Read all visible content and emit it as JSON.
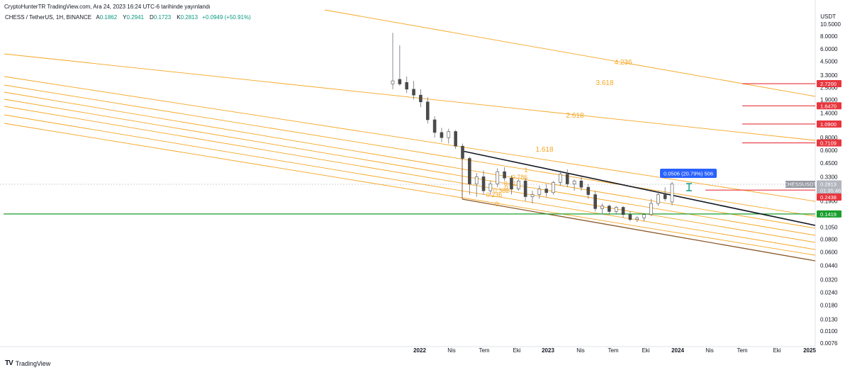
{
  "header": {
    "publisher": "CryptoHunterTR TradingView.com, Ara 24, 2023 16:24 UTC-6 tarihinde yayınlandı",
    "symbol_title": "CHESS / TetherUS, 1H, BINANCE",
    "ohlc": [
      {
        "label": "A",
        "value": "0.1862"
      },
      {
        "label": "Y",
        "value": "0.2941"
      },
      {
        "label": "D",
        "value": "0.1723"
      },
      {
        "label": "K",
        "value": "0.2813"
      }
    ],
    "change": "+0.0949 (+50.91%)",
    "currency": "USDT"
  },
  "footer": {
    "brand": "TradingView",
    "brand_mark": "TV"
  },
  "colors": {
    "fib": "#f5a623",
    "trend": "#131722",
    "channel_base": "#8b5a2b",
    "support": "#1b9e2d",
    "target": "#e8363f",
    "tooltip": "#2962ff",
    "measure": "#089981",
    "candle_up": "#ffffff",
    "candle_down": "#4a4a4a"
  },
  "chart_data": {
    "type": "candlestick",
    "y_scale": "log",
    "ylim": [
      0.0076,
      12.5
    ],
    "y_ticks": [
      "10.5000",
      "8.0000",
      "6.0000",
      "4.5000",
      "3.3000",
      "2.5000",
      "1.9000",
      "1.4000",
      "0.8000",
      "0.6000",
      "0.4500",
      "0.3300",
      "0.1900",
      "0.1050",
      "0.0800",
      "0.0600",
      "0.0440",
      "0.0320",
      "0.0240",
      "0.0180",
      "0.0130",
      "0.0100",
      "0.0076"
    ],
    "x_ticks": [
      {
        "label": "2022",
        "year": true
      },
      {
        "label": "Nis",
        "year": false
      },
      {
        "label": "Tem",
        "year": false
      },
      {
        "label": "Eki",
        "year": false
      },
      {
        "label": "2023",
        "year": true
      },
      {
        "label": "Nis",
        "year": false
      },
      {
        "label": "Tem",
        "year": false
      },
      {
        "label": "Eki",
        "year": false
      },
      {
        "label": "2024",
        "year": true
      },
      {
        "label": "Nis",
        "year": false
      },
      {
        "label": "Tem",
        "year": false
      },
      {
        "label": "Eki",
        "year": false
      },
      {
        "label": "2025",
        "year": true
      }
    ],
    "price_labels": [
      {
        "value": "2.7200",
        "kind": "target"
      },
      {
        "value": "1.6470",
        "kind": "target"
      },
      {
        "value": "1.0900",
        "kind": "target"
      },
      {
        "value": "0.7109",
        "kind": "target"
      },
      {
        "value": "0.2813",
        "kind": "last"
      },
      {
        "value": "01:35:46",
        "kind": "countdown"
      },
      {
        "value": "0.2438",
        "kind": "target"
      },
      {
        "value": "0.1419",
        "kind": "support"
      }
    ],
    "symbol_badge": "CHESSUSDT",
    "fib_levels": [
      "0.236",
      "0.382",
      "0.5",
      "0.618",
      "0.786",
      "1",
      "1.618",
      "2.618",
      "3.618",
      "4.236"
    ],
    "fib_zero_label": "0",
    "horizontal_levels": [
      {
        "value": 2.72,
        "kind": "target"
      },
      {
        "value": 1.647,
        "kind": "target"
      },
      {
        "value": 1.09,
        "kind": "target"
      },
      {
        "value": 0.7109,
        "kind": "target"
      },
      {
        "value": 0.2438,
        "kind": "target"
      },
      {
        "value": 0.1419,
        "kind": "support"
      }
    ],
    "measure_tooltip": "0.0506 (20.79%) 506",
    "candles": [
      {
        "o": 2.7,
        "h": 8.6,
        "l": 2.4,
        "c": 2.9
      },
      {
        "o": 3.0,
        "h": 6.5,
        "l": 2.6,
        "c": 2.7
      },
      {
        "o": 2.8,
        "h": 3.2,
        "l": 2.2,
        "c": 2.4
      },
      {
        "o": 2.4,
        "h": 2.9,
        "l": 1.9,
        "c": 2.1
      },
      {
        "o": 2.1,
        "h": 2.4,
        "l": 1.6,
        "c": 1.8
      },
      {
        "o": 1.8,
        "h": 2.0,
        "l": 1.1,
        "c": 1.2
      },
      {
        "o": 1.2,
        "h": 1.3,
        "l": 0.8,
        "c": 0.9
      },
      {
        "o": 0.9,
        "h": 1.0,
        "l": 0.72,
        "c": 0.8
      },
      {
        "o": 0.8,
        "h": 0.98,
        "l": 0.7,
        "c": 0.92
      },
      {
        "o": 0.92,
        "h": 0.95,
        "l": 0.62,
        "c": 0.66
      },
      {
        "o": 0.66,
        "h": 0.7,
        "l": 0.48,
        "c": 0.5
      },
      {
        "o": 0.5,
        "h": 0.52,
        "l": 0.22,
        "c": 0.28
      },
      {
        "o": 0.28,
        "h": 0.36,
        "l": 0.21,
        "c": 0.33
      },
      {
        "o": 0.33,
        "h": 0.38,
        "l": 0.22,
        "c": 0.24
      },
      {
        "o": 0.24,
        "h": 0.3,
        "l": 0.22,
        "c": 0.28
      },
      {
        "o": 0.28,
        "h": 0.4,
        "l": 0.26,
        "c": 0.37
      },
      {
        "o": 0.37,
        "h": 0.41,
        "l": 0.3,
        "c": 0.32
      },
      {
        "o": 0.32,
        "h": 0.34,
        "l": 0.22,
        "c": 0.25
      },
      {
        "o": 0.25,
        "h": 0.31,
        "l": 0.24,
        "c": 0.3
      },
      {
        "o": 0.3,
        "h": 0.32,
        "l": 0.19,
        "c": 0.21
      },
      {
        "o": 0.21,
        "h": 0.24,
        "l": 0.18,
        "c": 0.22
      },
      {
        "o": 0.22,
        "h": 0.27,
        "l": 0.2,
        "c": 0.25
      },
      {
        "o": 0.25,
        "h": 0.28,
        "l": 0.21,
        "c": 0.23
      },
      {
        "o": 0.23,
        "h": 0.3,
        "l": 0.22,
        "c": 0.29
      },
      {
        "o": 0.29,
        "h": 0.38,
        "l": 0.27,
        "c": 0.35
      },
      {
        "o": 0.35,
        "h": 0.39,
        "l": 0.26,
        "c": 0.28
      },
      {
        "o": 0.28,
        "h": 0.31,
        "l": 0.24,
        "c": 0.3
      },
      {
        "o": 0.3,
        "h": 0.33,
        "l": 0.24,
        "c": 0.26
      },
      {
        "o": 0.26,
        "h": 0.28,
        "l": 0.2,
        "c": 0.22
      },
      {
        "o": 0.22,
        "h": 0.24,
        "l": 0.15,
        "c": 0.16
      },
      {
        "o": 0.16,
        "h": 0.18,
        "l": 0.14,
        "c": 0.17
      },
      {
        "o": 0.17,
        "h": 0.175,
        "l": 0.14,
        "c": 0.15
      },
      {
        "o": 0.15,
        "h": 0.17,
        "l": 0.14,
        "c": 0.165
      },
      {
        "o": 0.165,
        "h": 0.17,
        "l": 0.13,
        "c": 0.14
      },
      {
        "o": 0.14,
        "h": 0.15,
        "l": 0.12,
        "c": 0.125
      },
      {
        "o": 0.125,
        "h": 0.135,
        "l": 0.118,
        "c": 0.13
      },
      {
        "o": 0.13,
        "h": 0.145,
        "l": 0.12,
        "c": 0.14
      },
      {
        "o": 0.14,
        "h": 0.2,
        "l": 0.135,
        "c": 0.18
      },
      {
        "o": 0.18,
        "h": 0.24,
        "l": 0.17,
        "c": 0.22
      },
      {
        "o": 0.22,
        "h": 0.26,
        "l": 0.19,
        "c": 0.2
      },
      {
        "o": 0.186,
        "h": 0.294,
        "l": 0.172,
        "c": 0.281
      }
    ]
  }
}
